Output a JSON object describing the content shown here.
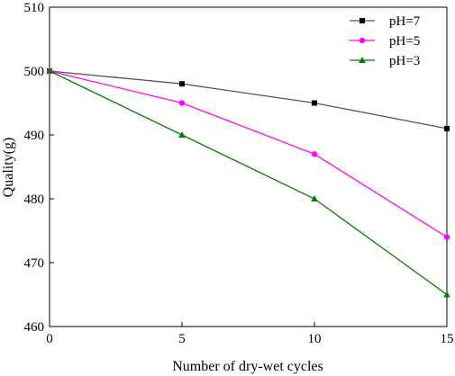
{
  "chart_data": {
    "type": "line",
    "title": "",
    "xlabel": "Number of dry-wet cycles",
    "ylabel": "Quality(g)",
    "x": [
      0,
      5,
      10,
      15
    ],
    "xlim": [
      0,
      15
    ],
    "ylim": [
      460,
      510
    ],
    "xticks": [
      0,
      5,
      10,
      15
    ],
    "yticks": [
      460,
      470,
      480,
      490,
      500,
      510
    ],
    "grid": false,
    "legend_position": "top-right",
    "series": [
      {
        "name": "pH=7",
        "color": "#000000",
        "line_color": "#555555",
        "marker": "square",
        "values": [
          500,
          498,
          495,
          491
        ]
      },
      {
        "name": "pH=5",
        "color": "#ff00ff",
        "line_color": "#ff00ff",
        "marker": "circle",
        "values": [
          500,
          495,
          487,
          474
        ]
      },
      {
        "name": "pH=3",
        "color": "#008000",
        "line_color": "#008000",
        "marker": "triangle",
        "values": [
          500,
          490,
          480,
          465
        ]
      }
    ]
  }
}
